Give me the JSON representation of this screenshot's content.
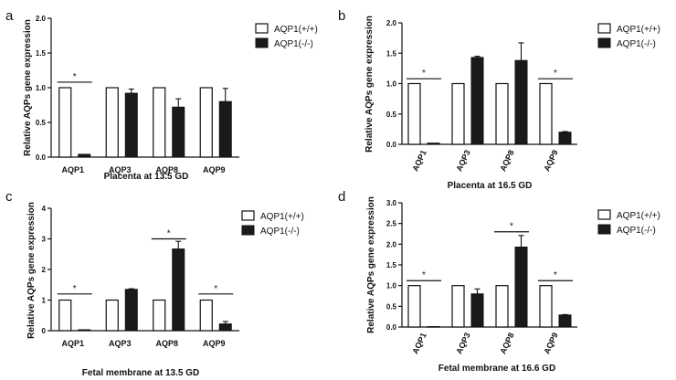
{
  "legend": {
    "wt": "AQP1(+/+)",
    "ko": "AQP1(-/-)"
  },
  "colors": {
    "wt_fill": "#ffffff",
    "ko_fill": "#1a1a1a",
    "stroke": "#111111"
  },
  "chart_data": [
    {
      "panel": "a",
      "type": "bar",
      "title": "",
      "xlabel": "Placenta at 13.5 GD",
      "ylabel": "Relative AQPs gene expression",
      "categories": [
        "AQP1",
        "AQP3",
        "AQP8",
        "AQP9"
      ],
      "ylim": [
        0,
        2.0
      ],
      "yticks": [
        "0.0",
        "0.5",
        "1.0",
        "1.5",
        "2.0"
      ],
      "yticks_values": [
        0,
        0.5,
        1.0,
        1.5,
        2.0
      ],
      "series": [
        {
          "name": "AQP1(+/+)",
          "values": [
            1.0,
            1.0,
            1.0,
            1.0
          ],
          "errors": [
            0,
            0,
            0,
            0
          ]
        },
        {
          "name": "AQP1(-/-)",
          "values": [
            0.04,
            0.92,
            0.72,
            0.8
          ],
          "errors": [
            0,
            0.06,
            0.12,
            0.19
          ]
        }
      ],
      "significance": [
        {
          "category_index": 0,
          "label": "*",
          "y": 1.08
        }
      ]
    },
    {
      "panel": "b",
      "type": "bar",
      "title": "",
      "xlabel": "Placenta at 16.5 GD",
      "ylabel": "Relative AQPs gene expression",
      "categories": [
        "AQP1",
        "AQP3",
        "AQP8",
        "AQP9"
      ],
      "ylim": [
        0,
        2.0
      ],
      "yticks": [
        "0.0",
        "0.5",
        "1.0",
        "1.5",
        "2.0"
      ],
      "yticks_values": [
        0,
        0.5,
        1.0,
        1.5,
        2.0
      ],
      "series": [
        {
          "name": "AQP1(+/+)",
          "values": [
            1.0,
            1.0,
            1.0,
            1.0
          ],
          "errors": [
            0,
            0,
            0,
            0
          ]
        },
        {
          "name": "AQP1(-/-)",
          "values": [
            0.02,
            1.43,
            1.38,
            0.2
          ],
          "errors": [
            0,
            0.02,
            0.29,
            0.01
          ]
        }
      ],
      "significance": [
        {
          "category_index": 0,
          "label": "*",
          "y": 1.08
        },
        {
          "category_index": 3,
          "label": "*",
          "y": 1.08
        }
      ]
    },
    {
      "panel": "c",
      "type": "bar",
      "title": "",
      "xlabel": "Fetal membrane at 13.5 GD",
      "ylabel": "Relative AQPs gene expression",
      "categories": [
        "AQP1",
        "AQP3",
        "AQP8",
        "AQP9"
      ],
      "ylim": [
        0,
        4
      ],
      "yticks": [
        "0",
        "1",
        "2",
        "3",
        "4"
      ],
      "yticks_values": [
        0,
        1,
        2,
        3,
        4
      ],
      "series": [
        {
          "name": "AQP1(+/+)",
          "values": [
            1.0,
            1.0,
            1.0,
            1.0
          ],
          "errors": [
            0,
            0,
            0,
            0
          ]
        },
        {
          "name": "AQP1(-/-)",
          "values": [
            0.03,
            1.35,
            2.67,
            0.22
          ],
          "errors": [
            0,
            0.02,
            0.25,
            0.08
          ]
        }
      ],
      "significance": [
        {
          "category_index": 0,
          "label": "*",
          "y": 1.2
        },
        {
          "category_index": 2,
          "label": "*",
          "y": 3.0
        },
        {
          "category_index": 3,
          "label": "*",
          "y": 1.2
        }
      ]
    },
    {
      "panel": "d",
      "type": "bar",
      "title": "",
      "xlabel": "Fetal membrane at 16.6 GD",
      "ylabel": "Relative AQPs gene expression",
      "categories": [
        "AQP1",
        "AQP3",
        "AQP8",
        "AQP9"
      ],
      "ylim": [
        0,
        3.0
      ],
      "yticks": [
        "0.0",
        "0.5",
        "1.0",
        "1.5",
        "2.0",
        "2.5",
        "3.0"
      ],
      "yticks_values": [
        0,
        0.5,
        1.0,
        1.5,
        2.0,
        2.5,
        3.0
      ],
      "series": [
        {
          "name": "AQP1(+/+)",
          "values": [
            1.0,
            1.0,
            1.0,
            1.0
          ],
          "errors": [
            0,
            0,
            0,
            0
          ]
        },
        {
          "name": "AQP1(-/-)",
          "values": [
            0.01,
            0.8,
            1.93,
            0.29
          ],
          "errors": [
            0,
            0.12,
            0.28,
            0.01
          ]
        }
      ],
      "significance": [
        {
          "category_index": 0,
          "label": "*",
          "y": 1.12
        },
        {
          "category_index": 2,
          "label": "*",
          "y": 2.3
        },
        {
          "category_index": 3,
          "label": "*",
          "y": 1.12
        }
      ]
    }
  ]
}
